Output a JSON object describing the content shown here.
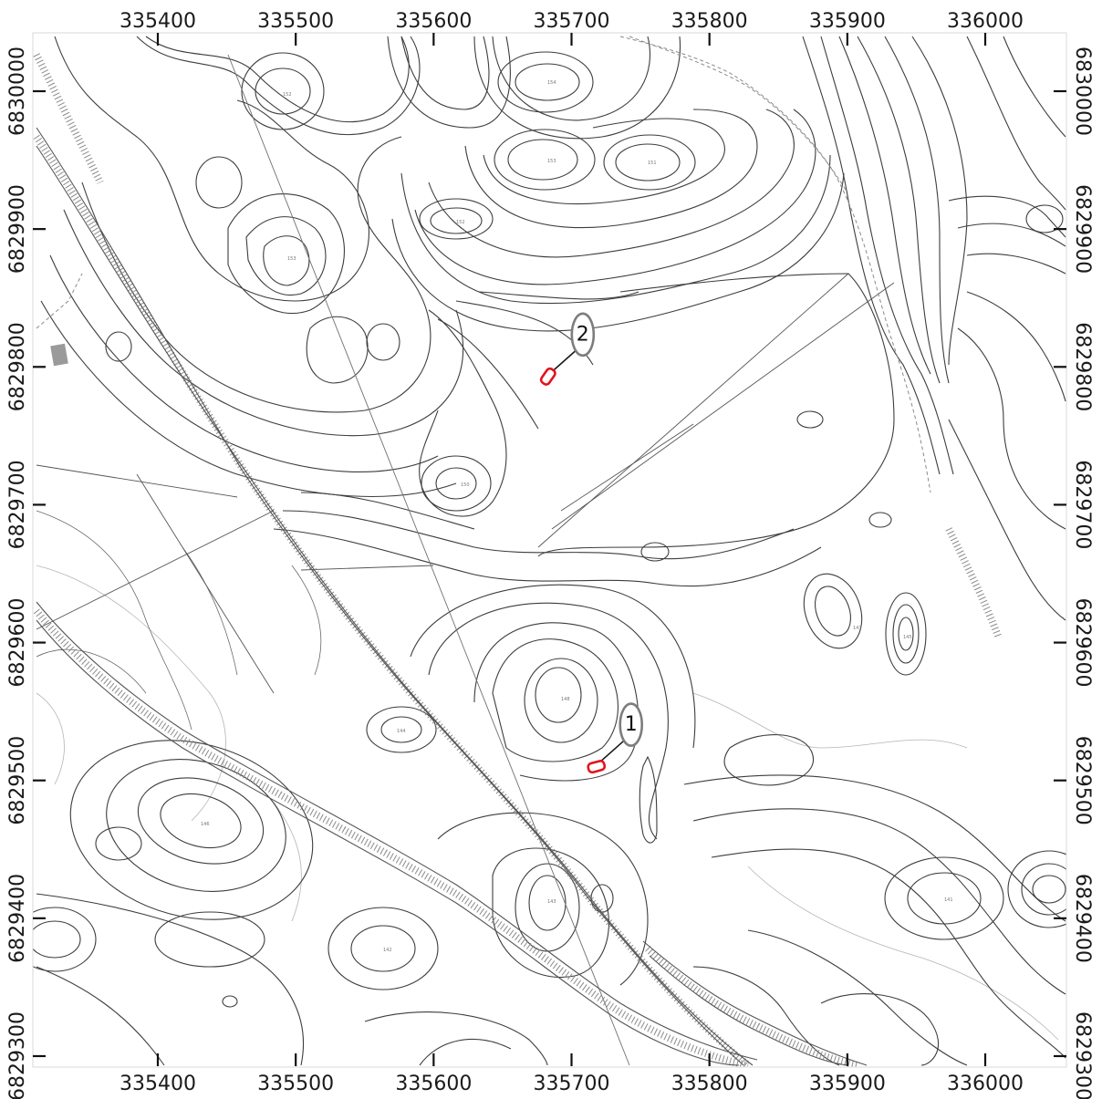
{
  "map": {
    "x_axis": {
      "ticks": [
        {
          "value": 335400,
          "label": "335400"
        },
        {
          "value": 335500,
          "label": "335500"
        },
        {
          "value": 335600,
          "label": "335600"
        },
        {
          "value": 335700,
          "label": "335700"
        },
        {
          "value": 335800,
          "label": "335800"
        },
        {
          "value": 335900,
          "label": "335900"
        },
        {
          "value": 336000,
          "label": "336000"
        }
      ]
    },
    "y_axis": {
      "ticks": [
        {
          "value": 6830000,
          "label": "6830000"
        },
        {
          "value": 6829900,
          "label": "6829900"
        },
        {
          "value": 6829800,
          "label": "6829800"
        },
        {
          "value": 6829700,
          "label": "6829700"
        },
        {
          "value": 6829600,
          "label": "6829600"
        },
        {
          "value": 6829500,
          "label": "6829500"
        },
        {
          "value": 6829400,
          "label": "6829400"
        },
        {
          "value": 6829300,
          "label": "6829300"
        }
      ]
    },
    "sites": [
      {
        "label": "1",
        "easting": 335718,
        "northing": 6829510
      },
      {
        "label": "2",
        "easting": 335683,
        "northing": 6829793
      }
    ],
    "colors": {
      "site_outline": "#e0141e",
      "callout_border": "#7d7d7d",
      "contour": "#3d3d3d",
      "frame": "#d9d9d9"
    }
  }
}
